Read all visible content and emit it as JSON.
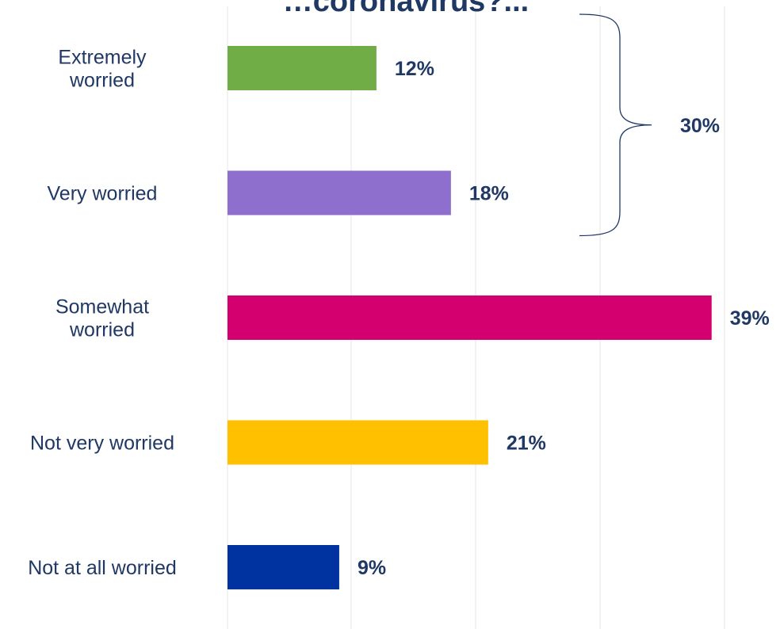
{
  "chart_data": {
    "type": "bar",
    "orientation": "horizontal",
    "title": "…coronavirus?...",
    "categories": [
      [
        "Extremely",
        "worried"
      ],
      [
        "Very worried"
      ],
      [
        "Somewhat",
        "worried"
      ],
      [
        "Not very worried"
      ],
      [
        "Not at all worried"
      ]
    ],
    "values": [
      12,
      18,
      39,
      21,
      9
    ],
    "value_labels": [
      "12%",
      "18%",
      "39%",
      "21%",
      "9%"
    ],
    "colors": [
      "#70ad47",
      "#8e6fce",
      "#d4006f",
      "#ffc000",
      "#0033a0"
    ],
    "xlim": [
      0,
      40
    ],
    "grid": true,
    "annotation": {
      "text": "30%",
      "spans_categories": [
        0,
        1
      ]
    }
  }
}
